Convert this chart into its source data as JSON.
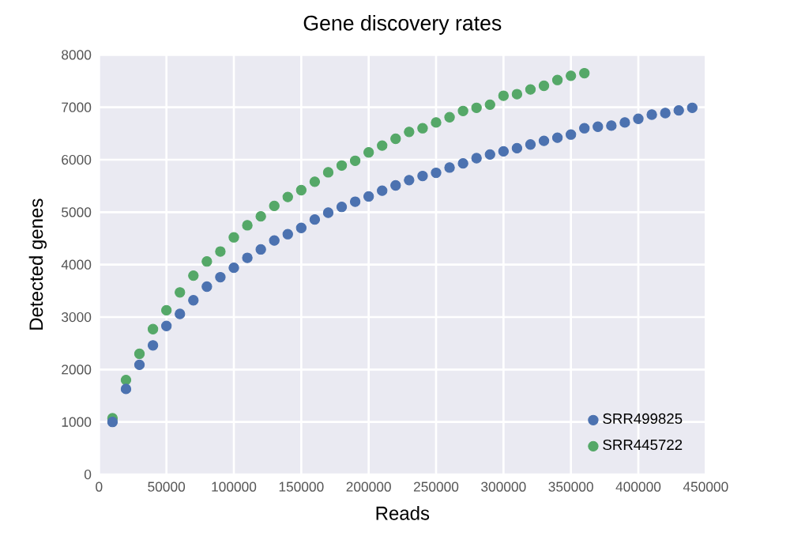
{
  "chart_data": {
    "type": "scatter",
    "title": "Gene discovery rates",
    "xlabel": "Reads",
    "ylabel": "Detected genes",
    "xlim": [
      0,
      450000
    ],
    "ylim": [
      0,
      8000
    ],
    "xticks": [
      0,
      50000,
      100000,
      150000,
      200000,
      250000,
      300000,
      350000,
      400000,
      450000
    ],
    "yticks": [
      0,
      1000,
      2000,
      3000,
      4000,
      5000,
      6000,
      7000,
      8000
    ],
    "grid": true,
    "legend": "bottom right",
    "marker": "circle",
    "series": [
      {
        "name": "SRR499825",
        "color": "#4c72b0",
        "x": [
          10000,
          20000,
          30000,
          40000,
          50000,
          60000,
          70000,
          80000,
          90000,
          100000,
          110000,
          120000,
          130000,
          140000,
          150000,
          160000,
          170000,
          180000,
          190000,
          200000,
          210000,
          220000,
          230000,
          240000,
          250000,
          260000,
          270000,
          280000,
          290000,
          300000,
          310000,
          320000,
          330000,
          340000,
          350000,
          360000,
          370000,
          380000,
          390000,
          400000,
          410000,
          420000,
          430000,
          440000
        ],
        "values": [
          1000,
          1630,
          2090,
          2460,
          2830,
          3060,
          3320,
          3580,
          3760,
          3940,
          4130,
          4290,
          4460,
          4580,
          4700,
          4860,
          4990,
          5100,
          5200,
          5300,
          5410,
          5510,
          5610,
          5690,
          5750,
          5850,
          5930,
          6030,
          6100,
          6160,
          6220,
          6290,
          6360,
          6420,
          6480,
          6600,
          6630,
          6650,
          6710,
          6780,
          6860,
          6890,
          6940,
          6990
        ]
      },
      {
        "name": "SRR445722",
        "color": "#55a868",
        "x": [
          10000,
          20000,
          30000,
          40000,
          50000,
          60000,
          70000,
          80000,
          90000,
          100000,
          110000,
          120000,
          130000,
          140000,
          150000,
          160000,
          170000,
          180000,
          190000,
          200000,
          210000,
          220000,
          230000,
          240000,
          250000,
          260000,
          270000,
          280000,
          290000,
          300000,
          310000,
          320000,
          330000,
          340000,
          350000,
          360000
        ],
        "values": [
          1070,
          1800,
          2300,
          2770,
          3130,
          3470,
          3790,
          4060,
          4250,
          4520,
          4750,
          4920,
          5120,
          5290,
          5420,
          5580,
          5760,
          5890,
          5980,
          6140,
          6270,
          6400,
          6530,
          6600,
          6710,
          6810,
          6930,
          6990,
          7050,
          7220,
          7250,
          7340,
          7410,
          7520,
          7600,
          7650
        ]
      }
    ]
  }
}
